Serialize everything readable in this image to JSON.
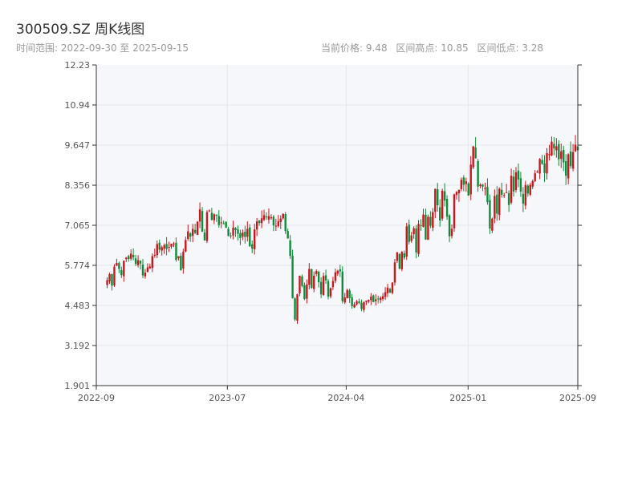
{
  "header": {
    "title": "300509.SZ 周K线图",
    "range_label": "时间范围: 2022-09-30 至 2025-09-15",
    "stats": [
      "当前价格: 9.48",
      "区间高点: 10.85",
      "区间低点: 3.28"
    ]
  },
  "chart_data": {
    "type": "candlestick",
    "title": "300509.SZ 周K线图",
    "ylim": [
      1.901,
      12.23
    ],
    "yticks": [
      "12.23",
      "10.94",
      "9.647",
      "8.356",
      "7.065",
      "5.774",
      "4.483",
      "3.192",
      "1.901"
    ],
    "xticks": [
      {
        "date": "2022-09-05",
        "label": "2022-09"
      },
      {
        "date": "2023-07-03",
        "label": "2023-07"
      },
      {
        "date": "2024-04-01",
        "label": "2024-04"
      },
      {
        "date": "2025-01-06",
        "label": "2025-01"
      },
      {
        "date": "2025-09-15",
        "label": "2025-09"
      }
    ],
    "grid": true,
    "colors": {
      "up": "#c8161d",
      "down": "#0e8c3a",
      "plot_bg": "#f6f7fa",
      "grid": "#e3e6ea",
      "axis": "#333333"
    },
    "start_date": "2022-09-30",
    "closes": [
      5.3,
      5.49,
      5.12,
      5.73,
      5.85,
      5.66,
      5.46,
      5.92,
      6.02,
      5.98,
      6.15,
      6.03,
      5.82,
      5.94,
      5.83,
      5.45,
      5.54,
      5.71,
      5.74,
      6.07,
      6.11,
      6.46,
      6.28,
      6.36,
      6.42,
      6.3,
      6.37,
      6.47,
      6.48,
      5.95,
      6.07,
      5.62,
      6.21,
      6.59,
      6.87,
      6.7,
      6.95,
      6.82,
      7.18,
      7.58,
      6.86,
      6.58,
      7.49,
      7.54,
      7.24,
      7.42,
      7.37,
      7.07,
      7.16,
      7.12,
      6.99,
      6.72,
      6.73,
      6.99,
      6.91,
      6.79,
      6.65,
      6.83,
      6.69,
      6.95,
      6.39,
      6.31,
      6.93,
      7.19,
      7.14,
      7.29,
      7.39,
      7.32,
      7.36,
      7.32,
      7.06,
      7.05,
      7.19,
      7.28,
      7.43,
      6.88,
      6.64,
      6.08,
      4.72,
      4.03,
      4.84,
      5.44,
      5.11,
      4.69,
      5.16,
      5.66,
      5.05,
      5.44,
      5.59,
      5.23,
      4.84,
      5.43,
      5.29,
      4.77,
      5.04,
      5.27,
      5.55,
      5.6,
      5.58,
      4.62,
      4.74,
      4.98,
      4.72,
      4.46,
      4.52,
      4.61,
      4.56,
      4.37,
      4.6,
      4.64,
      4.66,
      4.77,
      4.59,
      4.68,
      4.7,
      4.73,
      4.78,
      4.91,
      5.06,
      4.9,
      5.22,
      5.87,
      6.19,
      5.67,
      6.21,
      6.02,
      7.03,
      6.53,
      6.74,
      6.97,
      6.19,
      7.11,
      7.06,
      7.41,
      6.61,
      7.34,
      7.05,
      7.49,
      8.24,
      7.71,
      7.22,
      8.18,
      7.86,
      7.34,
      6.71,
      6.95,
      8.06,
      8.14,
      8.21,
      8.53,
      8.37,
      8.48,
      8.02,
      9.02,
      9.61,
      9.22,
      8.31,
      8.38,
      8.31,
      8.27,
      7.81,
      6.96,
      7.28,
      8.01,
      7.44,
      8.24,
      8.05,
      8.04,
      8.13,
      7.72,
      8.66,
      8.15,
      8.77,
      8.54,
      8.15,
      7.76,
      8.36,
      8.09,
      8.37,
      8.49,
      8.74,
      8.79,
      9.2,
      9.04,
      8.75,
      9.39,
      9.36,
      9.76,
      9.54,
      9.61,
      9.19,
      9.45,
      9.09,
      8.66,
      9.35,
      8.97,
      9.42,
      9.66,
      9.48
    ]
  }
}
